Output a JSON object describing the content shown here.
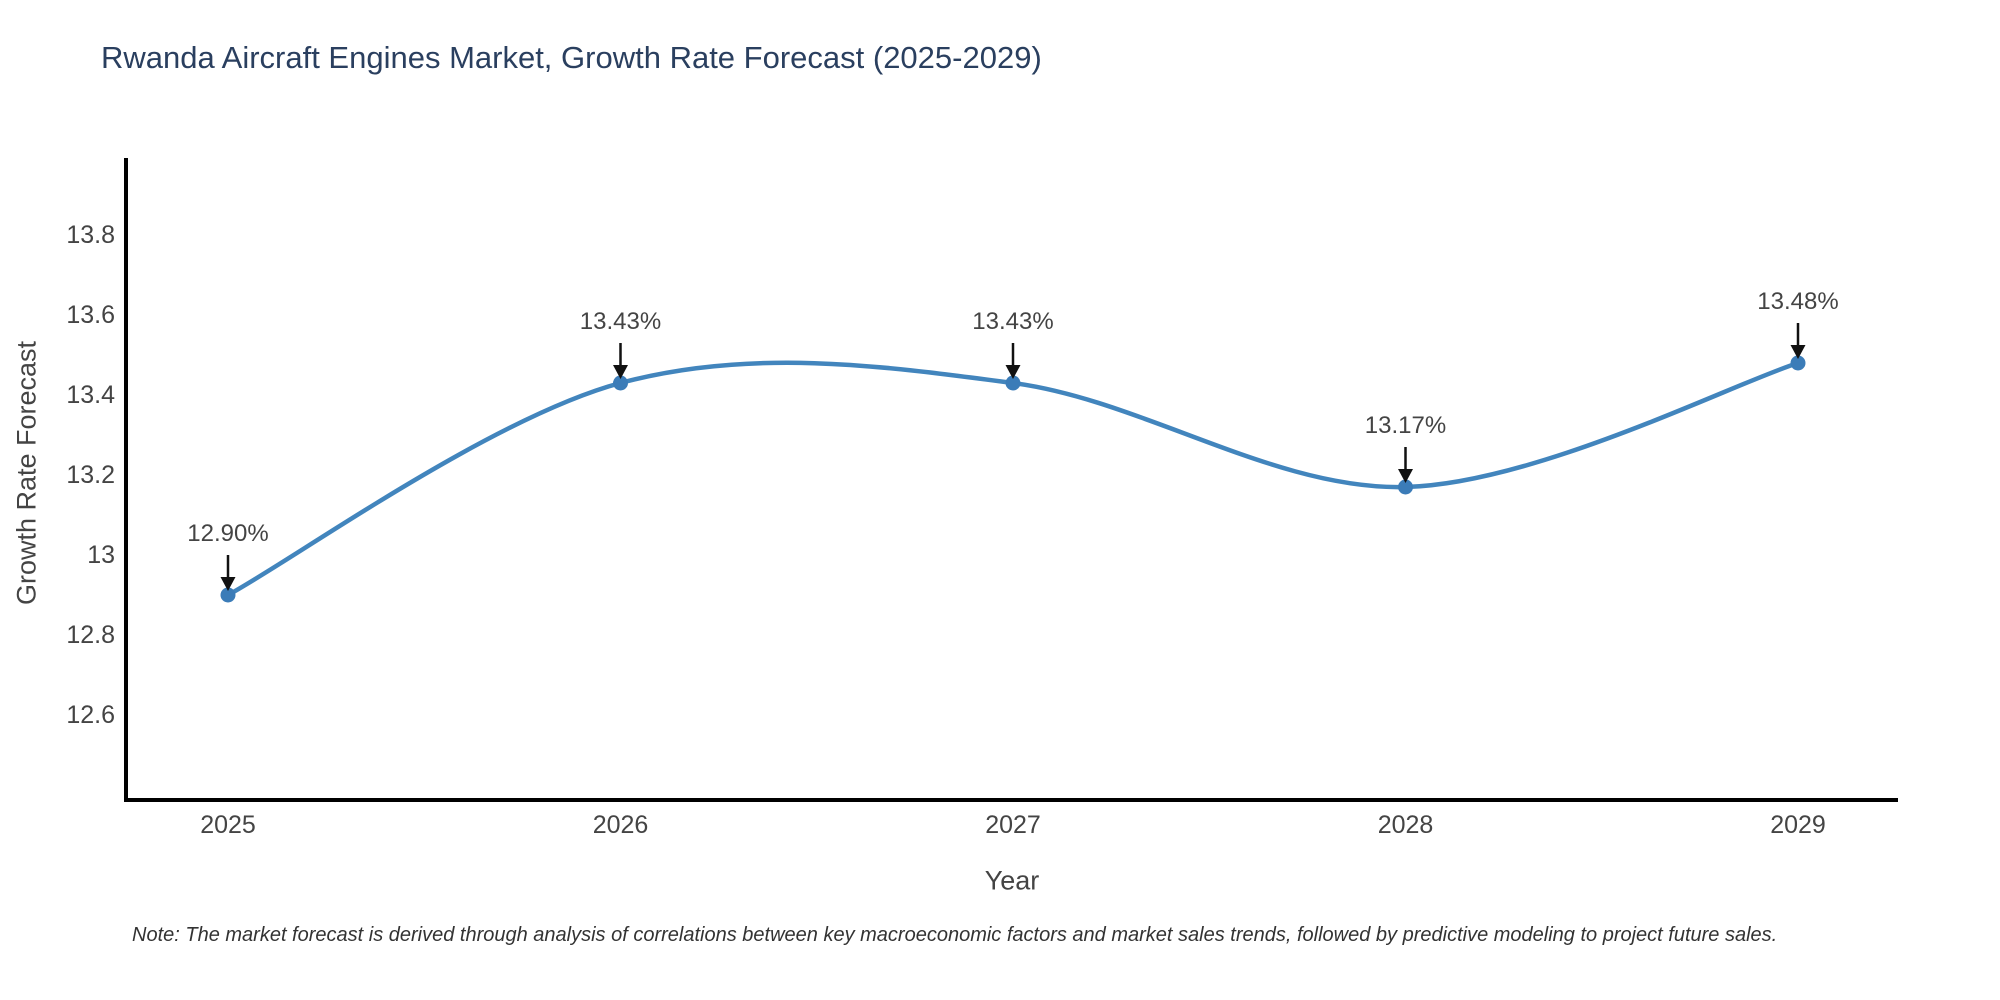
{
  "page": {
    "title": "Rwanda Aircraft Engines Market, Growth Rate Forecast (2025-2029)",
    "footnote": "Note: The market forecast is derived through analysis of correlations between key macroeconomic factors and market sales trends, followed by predictive modeling to project future sales."
  },
  "chart_data": {
    "type": "line",
    "title": "Rwanda Aircraft Engines Market, Growth Rate Forecast (2025-2029)",
    "xlabel": "Year",
    "ylabel": "Growth Rate Forecast",
    "categories": [
      "2025",
      "2026",
      "2027",
      "2028",
      "2029"
    ],
    "values": [
      12.9,
      13.43,
      13.43,
      13.17,
      13.48
    ],
    "point_labels": [
      "12.90%",
      "13.43%",
      "13.43%",
      "13.17%",
      "13.48%"
    ],
    "yticks": [
      12.6,
      12.8,
      13,
      13.2,
      13.4,
      13.6,
      13.8
    ],
    "ytick_labels": [
      "12.6",
      "12.8",
      "13",
      "13.2",
      "13.4",
      "13.6",
      "13.8"
    ],
    "ylim": [
      12.38,
      13.99
    ],
    "line_shape": "spline",
    "grid": false,
    "legend_position": "none",
    "annotations_have_arrows": true,
    "colors": {
      "line": "#4285bd",
      "marker": "#3b7cb8",
      "axis": "#000000",
      "arrow": "#111111",
      "title": "#2a3f5f",
      "tick_label": "#444444",
      "annotation_text": "#444444",
      "note_text": "#333333",
      "background": "#ffffff"
    }
  }
}
